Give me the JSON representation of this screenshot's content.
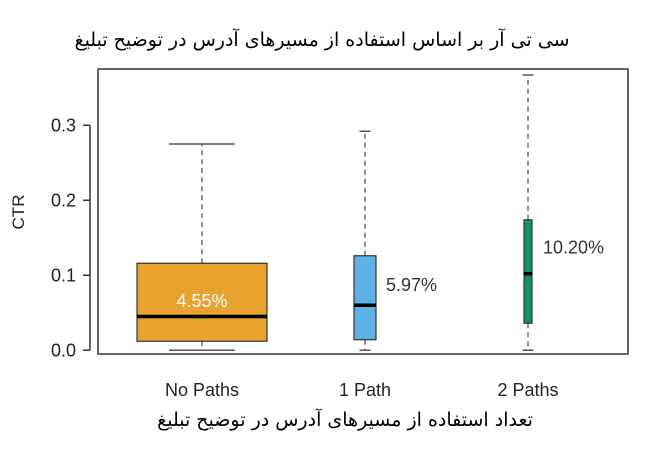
{
  "chart_data": {
    "type": "boxplot",
    "title": "سی تی آر بر اساس استفاده از مسیرهای آدرس در توضیح تبلیغ",
    "xlabel": "تعداد استفاده از مسیرهای آدرس در توضیح تبلیغ",
    "ylabel": "CTR",
    "ylim": [
      -0.005,
      0.375
    ],
    "yticks": [
      0.0,
      0.1,
      0.2,
      0.3
    ],
    "ytick_labels": [
      "0.0",
      "0.1",
      "0.2",
      "0.3"
    ],
    "grid": false,
    "categories": [
      "No Paths",
      "1 Path",
      "2 Paths"
    ],
    "boxes": [
      {
        "category": "No Paths",
        "min": 0.0,
        "q1": 0.012,
        "median": 0.045,
        "q3": 0.116,
        "max": 0.275,
        "label": "4.55%",
        "color": "#E8A22E"
      },
      {
        "category": "1 Path",
        "min": 0.0,
        "q1": 0.014,
        "median": 0.06,
        "q3": 0.126,
        "max": 0.292,
        "label": "5.97%",
        "color": "#5DB1E4"
      },
      {
        "category": "2 Paths",
        "min": 0.0,
        "q1": 0.036,
        "median": 0.102,
        "q3": 0.174,
        "max": 0.367,
        "label": "10.20%",
        "color": "#11936B"
      }
    ]
  }
}
